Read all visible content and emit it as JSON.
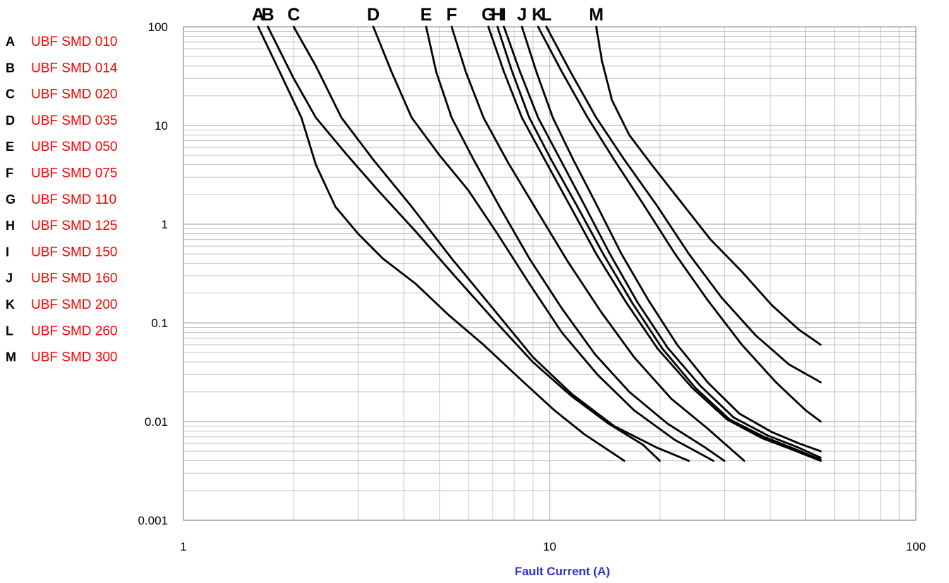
{
  "chart_data": {
    "type": "line",
    "xlabel": "Fault Current (A)",
    "ylabel": "",
    "x_scale": "log",
    "y_scale": "log",
    "xlim": [
      1,
      100
    ],
    "ylim": [
      0.001,
      100
    ],
    "x_ticks": [
      "1",
      "10",
      "100"
    ],
    "y_ticks": [
      "0.001",
      "0.01",
      "0.1",
      "1",
      "10",
      "100"
    ],
    "grid": true,
    "legend_position": "left",
    "colors": {
      "line": "#000000",
      "legend_text": "#ff0000",
      "xlabel": "#3333cc",
      "grid": "#b4b4b4"
    },
    "series": [
      {
        "key": "A",
        "name": "UBF SMD 010",
        "x": [
          1.6,
          1.8,
          2.1,
          2.3,
          2.6,
          3.0,
          3.5,
          4.3,
          5.3,
          6.6,
          8.4,
          10.3,
          12.4,
          16.0
        ],
        "y": [
          100,
          40,
          12,
          4,
          1.5,
          0.8,
          0.45,
          0.25,
          0.12,
          0.06,
          0.026,
          0.013,
          0.0075,
          0.004
        ]
      },
      {
        "key": "B",
        "name": "UBF SMD 014",
        "x": [
          1.7,
          2.0,
          2.3,
          2.8,
          3.4,
          4.3,
          5.5,
          7.0,
          9.0,
          11.5,
          14.5,
          18.0,
          20.0
        ],
        "y": [
          100,
          30,
          12,
          5,
          2.2,
          0.85,
          0.3,
          0.11,
          0.04,
          0.018,
          0.0095,
          0.0058,
          0.004
        ]
      },
      {
        "key": "C",
        "name": "UBF SMD 020",
        "x": [
          2.0,
          2.3,
          2.7,
          3.3,
          4.2,
          5.4,
          7.0,
          9.0,
          11.5,
          15.0,
          19.5,
          24.0
        ],
        "y": [
          100,
          40,
          12,
          4.5,
          1.5,
          0.45,
          0.14,
          0.045,
          0.019,
          0.009,
          0.0055,
          0.004
        ]
      },
      {
        "key": "D",
        "name": "UBF SMD 035",
        "x": [
          3.3,
          3.7,
          4.2,
          5.0,
          6.0,
          7.2,
          8.8,
          10.8,
          13.5,
          17.0,
          22.0,
          28.0
        ],
        "y": [
          100,
          35,
          12,
          5,
          2.2,
          0.8,
          0.25,
          0.08,
          0.03,
          0.013,
          0.0065,
          0.004
        ]
      },
      {
        "key": "E",
        "name": "UBF SMD 050",
        "x": [
          4.6,
          4.9,
          5.4,
          6.2,
          7.3,
          8.8,
          10.8,
          13.3,
          16.5,
          21.0,
          26.5,
          30.0
        ],
        "y": [
          100,
          35,
          12,
          4.5,
          1.5,
          0.45,
          0.14,
          0.048,
          0.02,
          0.0095,
          0.0055,
          0.004
        ]
      },
      {
        "key": "F",
        "name": "UBF SMD 075",
        "x": [
          5.4,
          5.9,
          6.6,
          7.7,
          9.2,
          11.2,
          13.8,
          17.0,
          21.5,
          27.0,
          34.0
        ],
        "y": [
          100,
          35,
          12,
          4.2,
          1.4,
          0.42,
          0.13,
          0.045,
          0.017,
          0.0085,
          0.004
        ]
      },
      {
        "key": "G",
        "name": "UBF SMD 110",
        "x": [
          6.8,
          7.5,
          8.4,
          9.7,
          11.3,
          13.4,
          16.2,
          19.7,
          24.5,
          30.5,
          38.0,
          46.0,
          55.0
        ],
        "y": [
          100,
          35,
          12,
          4.5,
          1.6,
          0.5,
          0.16,
          0.055,
          0.022,
          0.0105,
          0.0068,
          0.0052,
          0.004
        ]
      },
      {
        "key": "H",
        "name": "UBF SMD 125",
        "x": [
          7.2,
          7.9,
          8.8,
          10.1,
          11.8,
          14.0,
          16.8,
          20.3,
          25.0,
          31.0,
          38.5,
          46.5,
          55.0
        ],
        "y": [
          100,
          35,
          12,
          4.5,
          1.6,
          0.5,
          0.16,
          0.055,
          0.022,
          0.0105,
          0.007,
          0.0053,
          0.0041
        ]
      },
      {
        "key": "I",
        "name": "UBF SMD 150",
        "x": [
          7.5,
          8.3,
          9.3,
          10.7,
          12.4,
          14.6,
          17.4,
          21.0,
          25.8,
          31.8,
          39.5,
          47.5,
          55.0
        ],
        "y": [
          100,
          35,
          12,
          4.5,
          1.6,
          0.5,
          0.16,
          0.056,
          0.023,
          0.011,
          0.0072,
          0.0055,
          0.0043
        ]
      },
      {
        "key": "J",
        "name": "UBF SMD 160",
        "x": [
          8.4,
          9.2,
          10.2,
          11.6,
          13.4,
          15.7,
          18.6,
          22.3,
          27.0,
          33.0,
          40.5,
          48.0,
          55.0
        ],
        "y": [
          100,
          35,
          12,
          4.5,
          1.6,
          0.5,
          0.17,
          0.06,
          0.025,
          0.012,
          0.0078,
          0.006,
          0.005
        ]
      },
      {
        "key": "K",
        "name": "UBF SMD 200",
        "x": [
          9.3,
          10.8,
          12.7,
          15.0,
          18.0,
          22.0,
          27.0,
          33.5,
          41.5,
          50.0,
          55.0
        ],
        "y": [
          100,
          35,
          12,
          4.5,
          1.6,
          0.5,
          0.17,
          0.06,
          0.025,
          0.013,
          0.01
        ]
      },
      {
        "key": "L",
        "name": "UBF SMD 260",
        "x": [
          9.8,
          11.4,
          13.4,
          16.0,
          19.5,
          24.0,
          29.5,
          36.5,
          45.0,
          55.0
        ],
        "y": [
          100,
          35,
          12,
          4.5,
          1.6,
          0.5,
          0.18,
          0.075,
          0.038,
          0.025
        ]
      },
      {
        "key": "M",
        "name": "UBF SMD 300",
        "x": [
          13.4,
          13.9,
          14.8,
          16.5,
          19.0,
          22.5,
          27.5,
          33.5,
          40.5,
          48.0,
          55.0
        ],
        "y": [
          100,
          45,
          18,
          8,
          4,
          1.8,
          0.7,
          0.33,
          0.15,
          0.085,
          0.06
        ]
      }
    ]
  }
}
